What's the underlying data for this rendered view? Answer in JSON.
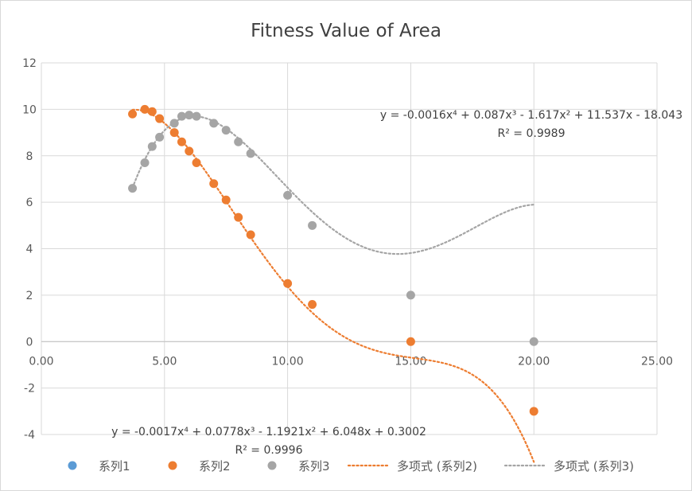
{
  "chart_data": {
    "type": "scatter",
    "title": "Fitness Value of Area",
    "xlim": [
      0,
      25
    ],
    "ylim": [
      -4,
      12
    ],
    "x_ticks": [
      "0.00",
      "5.00",
      "10.00",
      "15.00",
      "20.00",
      "25.00"
    ],
    "y_ticks": [
      "-4",
      "-2",
      "0",
      "2",
      "4",
      "6",
      "8",
      "10",
      "12"
    ],
    "grid": true,
    "legend_position": "bottom",
    "series": [
      {
        "name": "系列1",
        "color": "#5b9bd5",
        "points": []
      },
      {
        "name": "系列2",
        "color": "#ed7d31",
        "points": [
          [
            3.7,
            9.8
          ],
          [
            4.2,
            10.0
          ],
          [
            4.5,
            9.9
          ],
          [
            4.8,
            9.6
          ],
          [
            5.4,
            9.0
          ],
          [
            5.7,
            8.6
          ],
          [
            6.0,
            8.2
          ],
          [
            6.3,
            7.7
          ],
          [
            7.0,
            6.8
          ],
          [
            7.5,
            6.1
          ],
          [
            8.0,
            5.35
          ],
          [
            8.5,
            4.6
          ],
          [
            10.0,
            2.5
          ],
          [
            11.0,
            1.6
          ],
          [
            15.0,
            0.0
          ],
          [
            20.0,
            -3.0
          ]
        ]
      },
      {
        "name": "系列3",
        "color": "#a5a5a5",
        "points": [
          [
            3.7,
            6.6
          ],
          [
            4.2,
            7.7
          ],
          [
            4.5,
            8.4
          ],
          [
            4.8,
            8.8
          ],
          [
            5.4,
            9.4
          ],
          [
            5.7,
            9.7
          ],
          [
            6.0,
            9.75
          ],
          [
            6.3,
            9.7
          ],
          [
            7.0,
            9.4
          ],
          [
            7.5,
            9.1
          ],
          [
            8.0,
            8.6
          ],
          [
            8.5,
            8.1
          ],
          [
            10.0,
            6.3
          ],
          [
            11.0,
            5.0
          ],
          [
            15.0,
            2.0
          ],
          [
            20.0,
            0.0
          ]
        ]
      }
    ],
    "trendlines": [
      {
        "name": "多项式 (系列2)",
        "series": "系列2",
        "color": "#ed7d31",
        "coefficients": [
          0.3002,
          6.048,
          -1.1921,
          0.0778,
          -0.0017
        ],
        "range": [
          3.7,
          20.0
        ],
        "equation": "y = -0.0017x⁴ + 0.0778x³ - 1.1921x² + 6.048x + 0.3002",
        "r2": "R² = 0.9996"
      },
      {
        "name": "多项式 (系列3)",
        "series": "系列3",
        "color": "#a5a5a5",
        "coefficients": [
          -18.043,
          11.537,
          -1.617,
          0.087,
          -0.0016
        ],
        "range": [
          3.7,
          20.0
        ],
        "equation": "y = -0.0016x⁴ + 0.087x³ - 1.617x² + 11.537x - 18.043",
        "r2": "R² = 0.9989"
      }
    ],
    "legend": [
      {
        "label": "系列1",
        "kind": "marker",
        "color": "#5b9bd5"
      },
      {
        "label": "系列2",
        "kind": "marker",
        "color": "#ed7d31"
      },
      {
        "label": "系列3",
        "kind": "marker",
        "color": "#a5a5a5"
      },
      {
        "label": "多项式 (系列2)",
        "kind": "dotted-line",
        "color": "#ed7d31"
      },
      {
        "label": "多项式 (系列3)",
        "kind": "dotted-line",
        "color": "#a5a5a5"
      }
    ]
  }
}
